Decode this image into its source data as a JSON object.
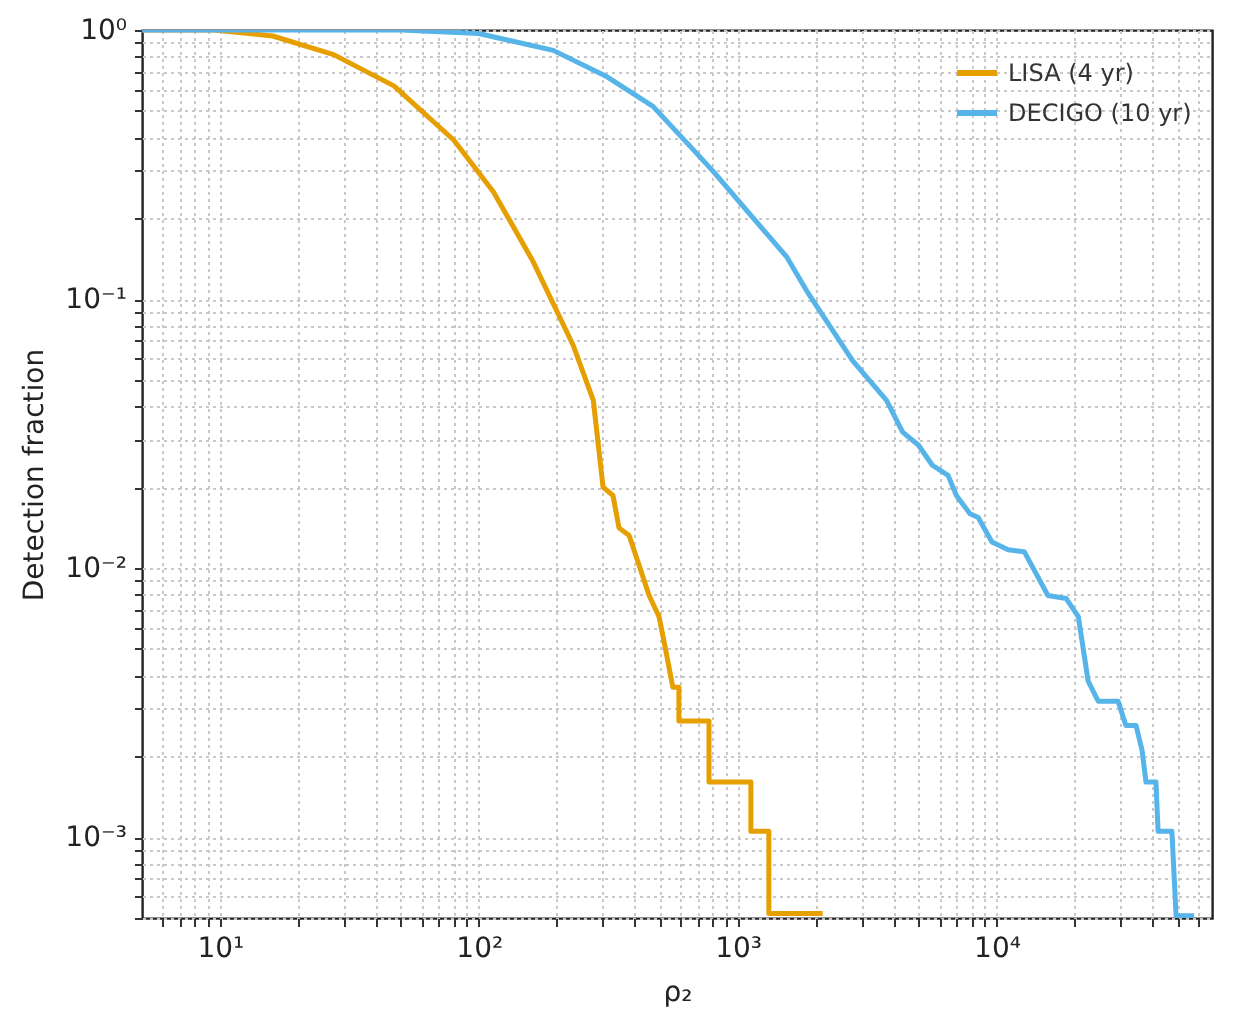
{
  "chart_data": {
    "type": "line",
    "xlabel": "ρ₂",
    "ylabel": "Detection fraction",
    "log": "xy",
    "grid": true,
    "legend": "top right",
    "line_style": "solid",
    "marker": "none",
    "xlim": [
      5,
      68000
    ],
    "ylim": [
      0.0005,
      1
    ],
    "xticks": [
      {
        "value": 6,
        "label": null
      },
      {
        "value": 7,
        "label": null
      },
      {
        "value": 8,
        "label": null
      },
      {
        "value": 9,
        "label": null
      },
      {
        "value": 10,
        "label": "10¹"
      },
      {
        "value": 20,
        "label": null
      },
      {
        "value": 30,
        "label": null
      },
      {
        "value": 40,
        "label": null
      },
      {
        "value": 50,
        "label": null
      },
      {
        "value": 60,
        "label": null
      },
      {
        "value": 70,
        "label": null
      },
      {
        "value": 80,
        "label": null
      },
      {
        "value": 90,
        "label": null
      },
      {
        "value": 100,
        "label": "10²"
      },
      {
        "value": 200,
        "label": null
      },
      {
        "value": 300,
        "label": null
      },
      {
        "value": 400,
        "label": null
      },
      {
        "value": 500,
        "label": null
      },
      {
        "value": 600,
        "label": null
      },
      {
        "value": 700,
        "label": null
      },
      {
        "value": 800,
        "label": null
      },
      {
        "value": 900,
        "label": null
      },
      {
        "value": 1000,
        "label": "10³"
      },
      {
        "value": 2000,
        "label": null
      },
      {
        "value": 3000,
        "label": null
      },
      {
        "value": 4000,
        "label": null
      },
      {
        "value": 5000,
        "label": null
      },
      {
        "value": 6000,
        "label": null
      },
      {
        "value": 7000,
        "label": null
      },
      {
        "value": 8000,
        "label": null
      },
      {
        "value": 9000,
        "label": null
      },
      {
        "value": 10000,
        "label": "10⁴"
      },
      {
        "value": 20000,
        "label": null
      },
      {
        "value": 30000,
        "label": null
      },
      {
        "value": 40000,
        "label": null
      },
      {
        "value": 50000,
        "label": null
      },
      {
        "value": 60000,
        "label": null
      }
    ],
    "yticks": [
      {
        "value": 0.0005,
        "label": null
      },
      {
        "value": 0.0006,
        "label": null
      },
      {
        "value": 0.0007,
        "label": null
      },
      {
        "value": 0.0008,
        "label": null
      },
      {
        "value": 0.0009,
        "label": null
      },
      {
        "value": 0.001,
        "label": "10⁻³"
      },
      {
        "value": 0.002,
        "label": null
      },
      {
        "value": 0.003,
        "label": null
      },
      {
        "value": 0.004,
        "label": null
      },
      {
        "value": 0.005,
        "label": null
      },
      {
        "value": 0.006,
        "label": null
      },
      {
        "value": 0.007,
        "label": null
      },
      {
        "value": 0.008,
        "label": null
      },
      {
        "value": 0.009,
        "label": null
      },
      {
        "value": 0.01,
        "label": "10⁻²"
      },
      {
        "value": 0.02,
        "label": null
      },
      {
        "value": 0.03,
        "label": null
      },
      {
        "value": 0.04,
        "label": null
      },
      {
        "value": 0.05,
        "label": null
      },
      {
        "value": 0.06,
        "label": null
      },
      {
        "value": 0.07,
        "label": null
      },
      {
        "value": 0.08,
        "label": null
      },
      {
        "value": 0.09,
        "label": null
      },
      {
        "value": 0.1,
        "label": "10⁻¹"
      },
      {
        "value": 0.2,
        "label": null
      },
      {
        "value": 0.3,
        "label": null
      },
      {
        "value": 0.4,
        "label": null
      },
      {
        "value": 0.5,
        "label": null
      },
      {
        "value": 0.6,
        "label": null
      },
      {
        "value": 0.7,
        "label": null
      },
      {
        "value": 0.8,
        "label": null
      },
      {
        "value": 0.9,
        "label": null
      },
      {
        "value": 1,
        "label": "10⁰"
      }
    ],
    "series": [
      {
        "name": "LISA (4 yr)",
        "color": "#e69f00",
        "x": [
          5,
          9.5,
          16,
          27.5,
          47,
          80,
          114,
          162,
          232,
          277,
          302,
          330,
          348,
          381,
          455,
          497,
          533,
          562,
          593,
          593,
          615,
          775,
          775,
          800,
          1125,
          1125,
          1190,
          1320,
          1320,
          1370,
          2130
        ],
        "values": [
          1,
          1,
          0.95,
          0.81,
          0.62,
          0.39,
          0.25,
          0.138,
          0.067,
          0.042,
          0.02,
          0.0186,
          0.0141,
          0.0132,
          0.0079,
          0.0066,
          0.0047,
          0.0036,
          0.0036,
          0.0027,
          0.0027,
          0.0027,
          0.0016,
          0.0016,
          0.0016,
          0.00105,
          0.00105,
          0.00105,
          0.00052,
          0.00052,
          0.00052
        ]
      },
      {
        "name": "DECIGO (10 yr)",
        "color": "#56b4e9",
        "x": [
          5,
          50,
          100,
          194,
          313,
          471,
          672,
          800,
          1550,
          1850,
          2780,
          3760,
          4340,
          5000,
          5650,
          6500,
          7000,
          7900,
          8500,
          9600,
          11100,
          12800,
          15800,
          18600,
          20700,
          22600,
          24700,
          29500,
          31600,
          34600,
          36500,
          37800,
          41300,
          42100,
          47600,
          49400,
          58000
        ],
        "values": [
          1,
          1,
          0.97,
          0.84,
          0.67,
          0.52,
          0.36,
          0.3,
          0.143,
          0.107,
          0.059,
          0.042,
          0.032,
          0.0286,
          0.0241,
          0.0221,
          0.0186,
          0.0159,
          0.0154,
          0.0125,
          0.0117,
          0.0115,
          0.0079,
          0.0077,
          0.0066,
          0.0038,
          0.0032,
          0.0032,
          0.0026,
          0.0026,
          0.0021,
          0.0016,
          0.0016,
          0.00105,
          0.00105,
          0.00051,
          0.00051
        ]
      }
    ]
  }
}
